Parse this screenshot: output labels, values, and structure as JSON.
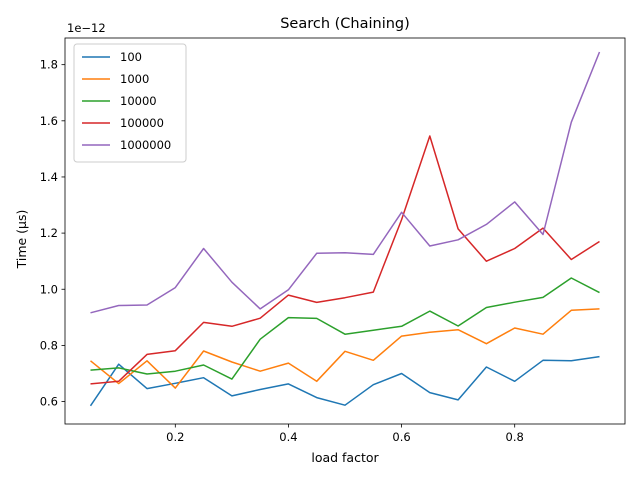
{
  "chart_data": {
    "type": "line",
    "title": "Search (Chaining)",
    "xlabel": "load factor",
    "ylabel": "Time (µs)",
    "y_offset_label": "1e−12",
    "xlim": [
      0.005,
      0.995
    ],
    "ylim": [
      0.52,
      1.895
    ],
    "xticks": [
      0.2,
      0.4,
      0.6,
      0.8
    ],
    "xtick_labels": [
      "0.2",
      "0.4",
      "0.6",
      "0.8"
    ],
    "yticks": [
      0.6,
      0.8,
      1.0,
      1.2,
      1.4,
      1.6,
      1.8
    ],
    "ytick_labels": [
      "0.6",
      "0.8",
      "1.0",
      "1.2",
      "1.4",
      "1.6",
      "1.8"
    ],
    "grid": false,
    "legend_position": "upper-left",
    "x": [
      0.05,
      0.1,
      0.15,
      0.2,
      0.25,
      0.3,
      0.35,
      0.4,
      0.45,
      0.5,
      0.55,
      0.6,
      0.65,
      0.7,
      0.75,
      0.8,
      0.85,
      0.9,
      0.95
    ],
    "series": [
      {
        "name": "100",
        "color": "#1f77b4",
        "values": [
          0.585,
          0.733,
          0.646,
          0.665,
          0.685,
          0.62,
          0.643,
          0.663,
          0.614,
          0.587,
          0.66,
          0.7,
          0.632,
          0.606,
          0.723,
          0.672,
          0.747,
          0.745,
          0.76
        ]
      },
      {
        "name": "1000",
        "color": "#ff7f0e",
        "values": [
          0.745,
          0.664,
          0.745,
          0.648,
          0.78,
          0.741,
          0.708,
          0.737,
          0.672,
          0.779,
          0.747,
          0.833,
          0.847,
          0.856,
          0.806,
          0.862,
          0.84,
          0.925,
          0.93
        ]
      },
      {
        "name": "10000",
        "color": "#2ca02c",
        "values": [
          0.712,
          0.72,
          0.698,
          0.708,
          0.73,
          0.68,
          0.822,
          0.899,
          0.896,
          0.84,
          0.854,
          0.868,
          0.922,
          0.869,
          0.935,
          0.954,
          0.971,
          1.04,
          0.988
        ]
      },
      {
        "name": "100000",
        "color": "#d62728",
        "values": [
          0.663,
          0.672,
          0.768,
          0.781,
          0.882,
          0.868,
          0.897,
          0.979,
          0.953,
          0.97,
          0.99,
          1.248,
          1.546,
          1.215,
          1.1,
          1.145,
          1.218,
          1.106,
          1.17
        ]
      },
      {
        "name": "1000000",
        "color": "#9467bd",
        "values": [
          0.916,
          0.942,
          0.944,
          1.006,
          1.145,
          1.025,
          0.93,
          0.998,
          1.128,
          1.13,
          1.124,
          1.274,
          1.154,
          1.176,
          1.231,
          1.311,
          1.195,
          1.595,
          1.845
        ]
      }
    ]
  }
}
